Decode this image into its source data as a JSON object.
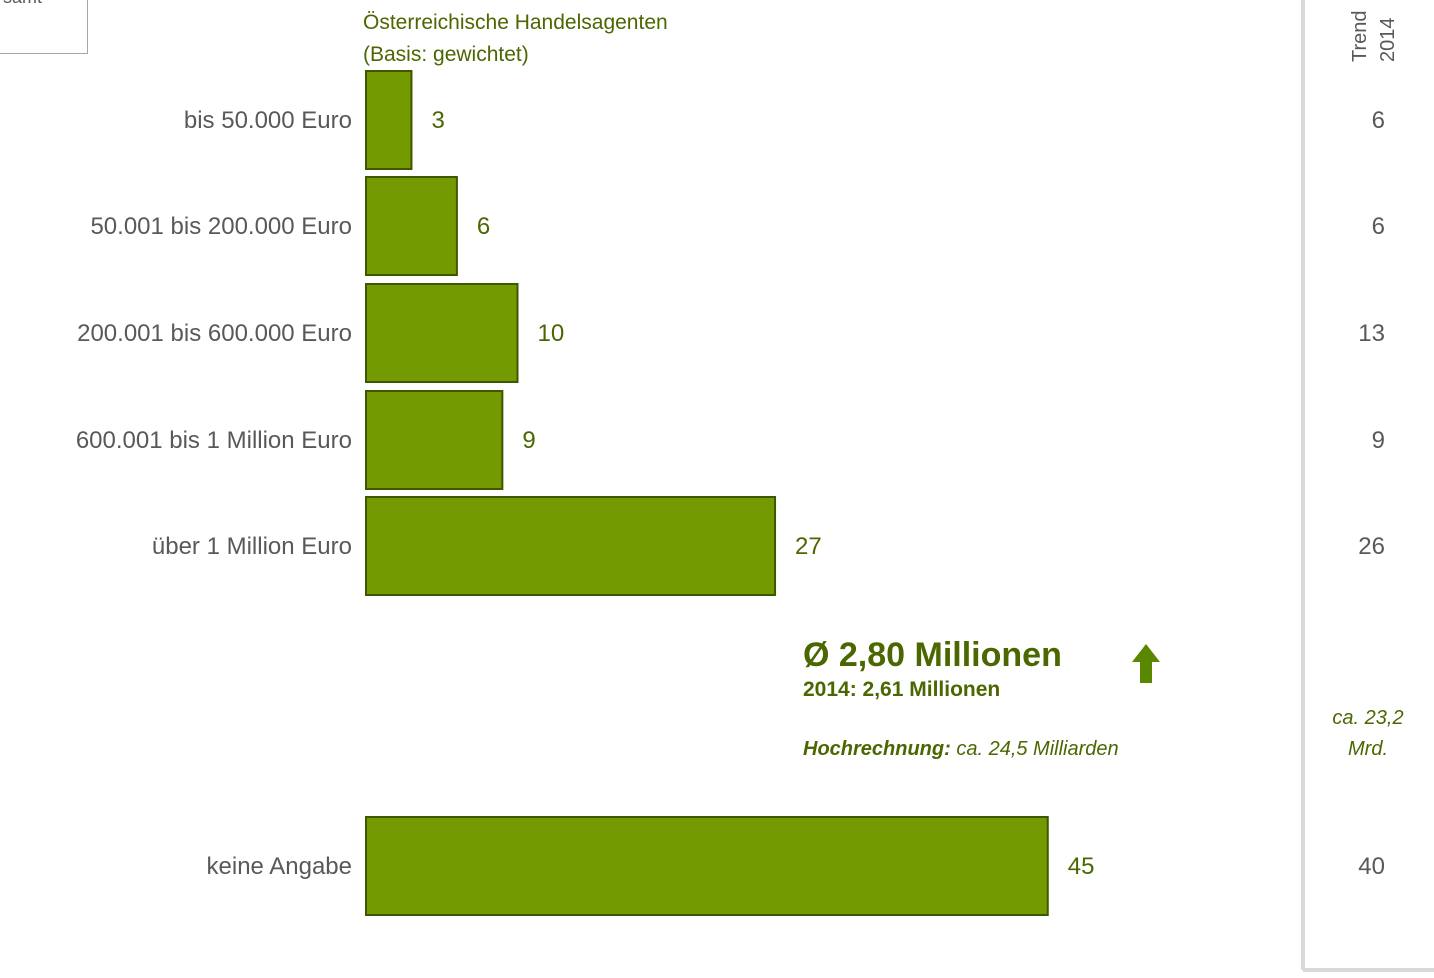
{
  "corner_label": "samt",
  "chart_data": {
    "type": "bar",
    "orientation": "horizontal",
    "title_line1": "Österreichische Handelsagenten",
    "title_line2": "(Basis: gewichtet)",
    "categories": [
      "bis 50.000 Euro",
      "50.001 bis 200.000 Euro",
      "200.001 bis 600.000 Euro",
      "600.001 bis 1 Million Euro",
      "über 1 Million Euro",
      "keine Angabe"
    ],
    "values": [
      3,
      6,
      10,
      9,
      27,
      45
    ],
    "trend": {
      "header_line1": "Trend",
      "header_line2": "2014",
      "values": [
        6,
        6,
        13,
        9,
        26,
        40
      ],
      "extrapolation_line1": "ca. 23,2",
      "extrapolation_line2": "Mrd."
    },
    "summary": {
      "average": "Ø 2,80 Millionen",
      "previous": "2014: 2,61 Millionen",
      "extrapolation_label": "Hochrechnung:",
      "extrapolation_value": " ca. 24,5 Milliarden",
      "trend_direction": "up"
    },
    "colors": {
      "bar": "#739a00",
      "bar_stroke": "#3f5700",
      "value_text": "#4a6700",
      "category_text": "#595959",
      "accent": "#5a8700"
    }
  }
}
